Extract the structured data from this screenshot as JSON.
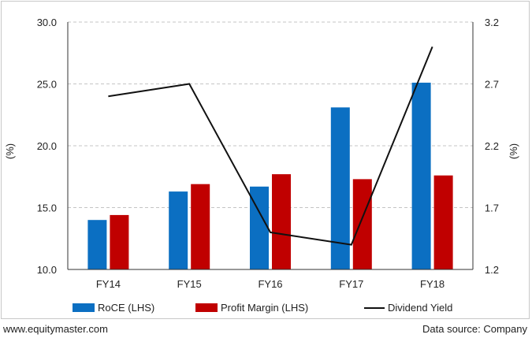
{
  "chart_data": {
    "type": "bar",
    "categories": [
      "FY14",
      "FY15",
      "FY16",
      "FY17",
      "FY18"
    ],
    "series": [
      {
        "name": "RoCE (LHS)",
        "kind": "bar",
        "axis": "left",
        "color": "#0b6fc2",
        "values": [
          14.0,
          16.3,
          16.7,
          23.1,
          25.1
        ]
      },
      {
        "name": "Profit Margin (LHS)",
        "kind": "bar",
        "axis": "left",
        "color": "#c00000",
        "values": [
          14.4,
          16.9,
          17.7,
          17.3,
          17.6
        ]
      },
      {
        "name": "Dividend Yield",
        "kind": "line",
        "axis": "right",
        "color": "#111111",
        "values": [
          2.6,
          2.7,
          1.5,
          1.4,
          3.0
        ]
      }
    ],
    "ylabel": "(%)",
    "y2label": "(%)",
    "ylim": [
      10.0,
      30.0
    ],
    "y2lim": [
      1.2,
      3.2
    ],
    "yticks": [
      "10.0",
      "15.0",
      "20.0",
      "25.0",
      "30.0"
    ],
    "y2ticks": [
      "1.2",
      "1.7",
      "2.2",
      "2.7",
      "3.2"
    ],
    "grid": true,
    "legend_position": "bottom"
  },
  "footer": {
    "source_left": "www.equitymaster.com",
    "source_right": "Data source: Company"
  }
}
